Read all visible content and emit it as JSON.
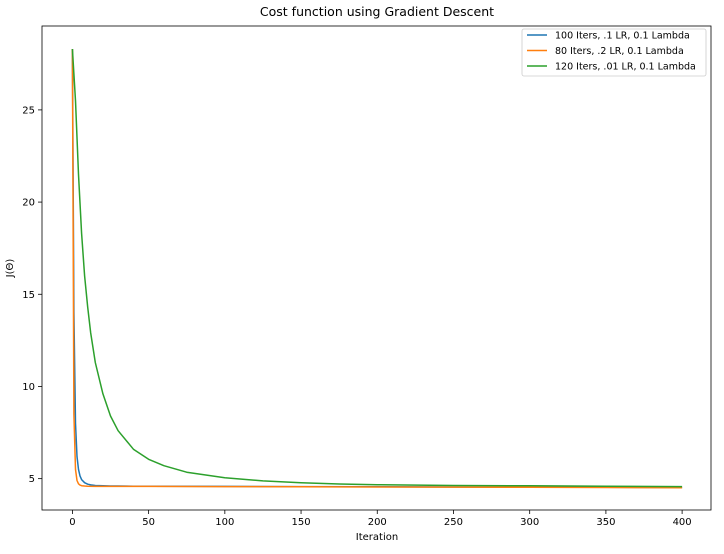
{
  "colors": {
    "series": [
      "#1f77b4",
      "#ff7f0e",
      "#2ca02c"
    ],
    "axis": "#000000",
    "legend_border": "#cccccc",
    "background": "#ffffff"
  },
  "chart_data": {
    "type": "line",
    "title": "Cost function using Gradient Descent",
    "xlabel": "Iteration",
    "ylabel": "J(Θ)",
    "xlim": [
      -19.95,
      418.95
    ],
    "ylim": [
      3.3,
      29.55
    ],
    "xticks": [
      0,
      50,
      100,
      150,
      200,
      250,
      300,
      350,
      400
    ],
    "yticks": [
      5,
      10,
      15,
      20,
      25
    ],
    "grid": false,
    "legend_position": "top-right",
    "series": [
      {
        "name": "100 Iters, .1 LR, 0.1 Lambda",
        "x": [
          0,
          1,
          2,
          3,
          4,
          5,
          6,
          8,
          10,
          12,
          15,
          20,
          25,
          30,
          40,
          50,
          100,
          150,
          200,
          250,
          300,
          350,
          400
        ],
        "y": [
          28.3,
          14.0,
          8.0,
          6.2,
          5.5,
          5.15,
          4.95,
          4.78,
          4.7,
          4.66,
          4.63,
          4.61,
          4.6,
          4.6,
          4.59,
          4.59,
          4.58,
          4.57,
          4.56,
          4.55,
          4.54,
          4.53,
          4.52
        ]
      },
      {
        "name": "80 Iters, .2 LR, 0.1 Lambda",
        "x": [
          0,
          1,
          2,
          3,
          4,
          5,
          6,
          8,
          10,
          15,
          20,
          30,
          50,
          100,
          150,
          200,
          250,
          300,
          350,
          400
        ],
        "y": [
          28.3,
          8.5,
          5.5,
          4.9,
          4.72,
          4.65,
          4.62,
          4.6,
          4.59,
          4.58,
          4.58,
          4.58,
          4.58,
          4.57,
          4.56,
          4.55,
          4.54,
          4.53,
          4.52,
          4.51
        ]
      },
      {
        "name": "120 Iters, .01 LR, 0.1 Lambda",
        "x": [
          0,
          2,
          4,
          6,
          8,
          10,
          12,
          15,
          20,
          25,
          30,
          40,
          50,
          60,
          75,
          100,
          125,
          150,
          175,
          200,
          250,
          300,
          350,
          400
        ],
        "y": [
          28.3,
          25.5,
          21.5,
          18.3,
          16.0,
          14.3,
          12.9,
          11.3,
          9.6,
          8.4,
          7.6,
          6.6,
          6.05,
          5.7,
          5.35,
          5.05,
          4.88,
          4.78,
          4.71,
          4.67,
          4.63,
          4.61,
          4.59,
          4.57
        ]
      }
    ]
  }
}
